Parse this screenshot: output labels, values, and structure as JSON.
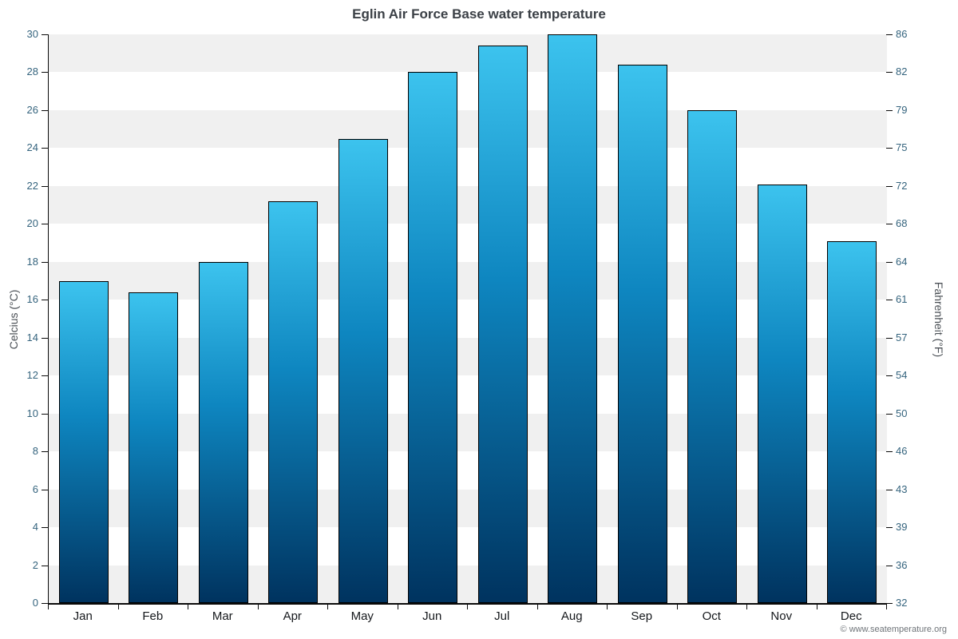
{
  "chart_data": {
    "type": "bar",
    "title": "Eglin Air Force Base water temperature",
    "categories": [
      "Jan",
      "Feb",
      "Mar",
      "Apr",
      "May",
      "Jun",
      "Jul",
      "Aug",
      "Sep",
      "Oct",
      "Nov",
      "Dec"
    ],
    "values": [
      17.0,
      16.4,
      18.0,
      21.2,
      24.5,
      28.0,
      29.4,
      30.0,
      28.4,
      26.0,
      22.1,
      19.1
    ],
    "ylabel_left": "Celcius (°C)",
    "ylabel_right": "Fahrenheit (°F)",
    "ylim_celsius": [
      0,
      30
    ],
    "yticks_celsius": [
      0,
      2,
      4,
      6,
      8,
      10,
      12,
      14,
      16,
      18,
      20,
      22,
      24,
      26,
      28,
      30
    ],
    "yticks_fahrenheit": [
      32,
      36,
      39,
      43,
      46,
      50,
      54,
      57,
      61,
      64,
      68,
      72,
      75,
      79,
      82,
      86
    ],
    "grid": "striped-bands",
    "legend_position": "none",
    "band_color": "#f0f0f0",
    "band_alt_color": "#ffffff",
    "bar_gradient_top": "#3cc3ee",
    "bar_gradient_mid": "#0e86c0",
    "bar_gradient_bottom": "#00335f",
    "bar_border_color": "#000000"
  },
  "footer": {
    "copyright": "© www.seatemperature.org"
  }
}
